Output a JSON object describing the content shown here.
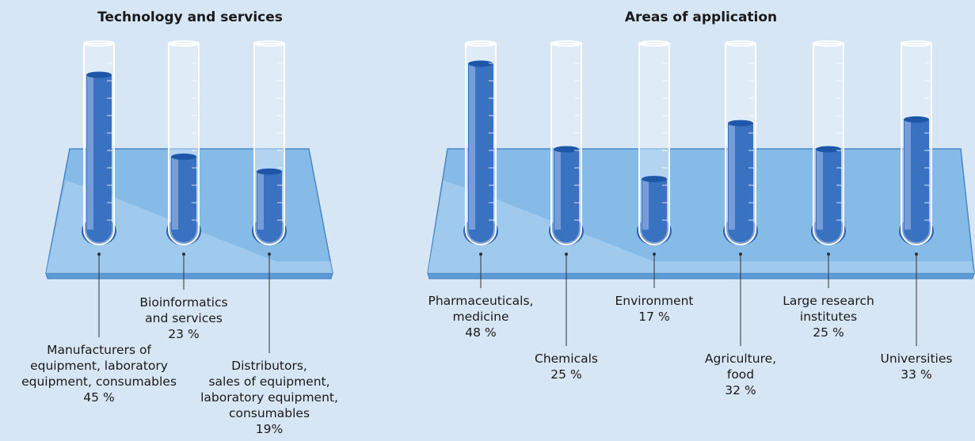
{
  "chart_data": [
    {
      "type": "bar",
      "title": "Technology and services",
      "categories": [
        "Manufacturers of\nequipment, laboratory\nequipment, consumables",
        "Bioinformatics\nand services",
        "Distributors,\nsales of equipment,\nlaboratory equipment,\nconsumables"
      ],
      "values": [
        45,
        23,
        19
      ],
      "value_labels": [
        "45 %",
        "23 %",
        "19%"
      ],
      "color": "#3a72c2"
    },
    {
      "type": "bar",
      "title": "Areas of application",
      "categories": [
        "Pharmaceuticals,\nmedicine",
        "Chemicals",
        "Environment",
        "Agriculture,\nfood",
        "Large research\ninstitutes",
        "Universities"
      ],
      "values": [
        48,
        25,
        17,
        32,
        25,
        33
      ],
      "value_labels": [
        "48 %",
        "25 %",
        "17 %",
        "32 %",
        "25 %",
        "33 %"
      ],
      "color": "#3a72c2"
    }
  ]
}
